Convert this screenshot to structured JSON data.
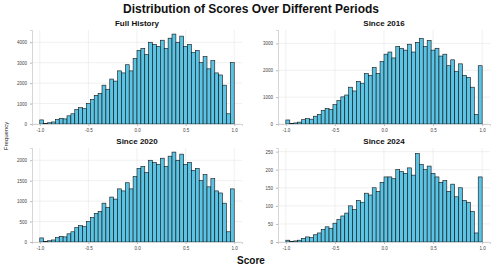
{
  "title": "Distribution of Scores Over Different Periods",
  "x_label": "Score",
  "y_label": "Frequency",
  "chart_data": [
    {
      "type": "histogram",
      "title": "Full History",
      "color": "#5bc4e4",
      "grid": true,
      "bins": [
        -1,
        -0.96,
        -0.92,
        -0.88,
        -0.84,
        -0.8,
        -0.76,
        -0.72,
        -0.68,
        -0.64,
        -0.6,
        -0.56,
        -0.52,
        -0.48,
        -0.44,
        -0.4,
        -0.36,
        -0.32,
        -0.28,
        -0.24,
        -0.2,
        -0.16,
        -0.12,
        -0.08,
        -0.04,
        0,
        0.04,
        0.08,
        0.12,
        0.16,
        0.2,
        0.24,
        0.28,
        0.32,
        0.36,
        0.4,
        0.44,
        0.48,
        0.52,
        0.56,
        0.6,
        0.64,
        0.68,
        0.72,
        0.76,
        0.8,
        0.84,
        0.88,
        0.92,
        0.96,
        1
      ],
      "values": [
        200,
        30,
        60,
        100,
        220,
        280,
        250,
        400,
        500,
        700,
        800,
        750,
        1000,
        1200,
        1400,
        1500,
        1900,
        1700,
        2200,
        2100,
        2600,
        2500,
        2900,
        2600,
        3200,
        3600,
        3700,
        3400,
        4000,
        3900,
        3800,
        4100,
        3700,
        4200,
        4400,
        4000,
        4300,
        3800,
        3900,
        3500,
        3600,
        3000,
        3300,
        2700,
        3100,
        2500,
        2400,
        1900,
        500,
        3000
      ],
      "xlim": [
        -1.08,
        1.08
      ],
      "ylim": [
        0,
        4600
      ],
      "xticks": [
        {
          "value": -1,
          "label": "-1.0"
        },
        -0.5,
        {
          "value": 0,
          "label": "0.0"
        },
        0.5,
        {
          "value": 1,
          "label": "1.0"
        }
      ],
      "yticks": [
        0,
        1000,
        2000,
        3000,
        4000
      ]
    },
    {
      "type": "histogram",
      "title": "Since 2016",
      "color": "#5bc4e4",
      "grid": true,
      "bins": [
        -1,
        -0.96,
        -0.92,
        -0.88,
        -0.84,
        -0.8,
        -0.76,
        -0.72,
        -0.68,
        -0.64,
        -0.6,
        -0.56,
        -0.52,
        -0.48,
        -0.44,
        -0.4,
        -0.36,
        -0.32,
        -0.28,
        -0.24,
        -0.2,
        -0.16,
        -0.12,
        -0.08,
        -0.04,
        0,
        0.04,
        0.08,
        0.12,
        0.16,
        0.2,
        0.24,
        0.28,
        0.32,
        0.36,
        0.4,
        0.44,
        0.48,
        0.52,
        0.56,
        0.6,
        0.64,
        0.68,
        0.72,
        0.76,
        0.8,
        0.84,
        0.88,
        0.92,
        0.96,
        1
      ],
      "values": [
        150,
        20,
        40,
        70,
        160,
        200,
        180,
        290,
        360,
        500,
        580,
        540,
        720,
        870,
        1010,
        1080,
        1370,
        1230,
        1590,
        1520,
        1880,
        1810,
        2100,
        1880,
        2320,
        2600,
        2680,
        2460,
        2890,
        2820,
        2750,
        2970,
        2680,
        3040,
        3180,
        2890,
        3110,
        2750,
        2820,
        2530,
        2600,
        2170,
        2390,
        1950,
        2240,
        1810,
        1740,
        1370,
        360,
        2170
      ],
      "xlim": [
        -1.08,
        1.08
      ],
      "ylim": [
        0,
        3500
      ],
      "xticks": [
        {
          "value": -1,
          "label": "-1.0"
        },
        -0.5,
        {
          "value": 0,
          "label": "0.0"
        },
        0.5,
        {
          "value": 1,
          "label": "1.0"
        }
      ],
      "yticks": [
        0,
        1000,
        2000,
        3000
      ]
    },
    {
      "type": "histogram",
      "title": "Since 2020",
      "color": "#5bc4e4",
      "grid": true,
      "bins": [
        -1,
        -0.96,
        -0.92,
        -0.88,
        -0.84,
        -0.8,
        -0.76,
        -0.72,
        -0.68,
        -0.64,
        -0.6,
        -0.56,
        -0.52,
        -0.48,
        -0.44,
        -0.4,
        -0.36,
        -0.32,
        -0.28,
        -0.24,
        -0.2,
        -0.16,
        -0.12,
        -0.08,
        -0.04,
        0,
        0.04,
        0.08,
        0.12,
        0.16,
        0.2,
        0.24,
        0.28,
        0.32,
        0.36,
        0.4,
        0.44,
        0.48,
        0.52,
        0.56,
        0.6,
        0.64,
        0.68,
        0.72,
        0.76,
        0.8,
        0.84,
        0.88,
        0.92,
        0.96,
        1
      ],
      "values": [
        100,
        15,
        30,
        50,
        110,
        140,
        125,
        200,
        250,
        350,
        400,
        375,
        500,
        600,
        700,
        750,
        950,
        850,
        1100,
        1050,
        1300,
        1250,
        1450,
        1300,
        1600,
        1800,
        1850,
        1700,
        2000,
        1950,
        1900,
        2050,
        1850,
        2100,
        2200,
        2000,
        2150,
        1900,
        1950,
        1750,
        1800,
        1500,
        1650,
        1350,
        1550,
        1250,
        1200,
        950,
        250,
        1300
      ],
      "xlim": [
        -1.08,
        1.08
      ],
      "ylim": [
        0,
        2300
      ],
      "xticks": [
        {
          "value": -1,
          "label": "-1.0"
        },
        -0.5,
        {
          "value": 0,
          "label": "0.0"
        },
        0.5,
        {
          "value": 1,
          "label": "1.0"
        }
      ],
      "yticks": [
        0,
        500,
        1000,
        1500,
        2000
      ]
    },
    {
      "type": "histogram",
      "title": "Since 2024",
      "color": "#5bc4e4",
      "grid": true,
      "bins": [
        -1,
        -0.96,
        -0.92,
        -0.88,
        -0.84,
        -0.8,
        -0.76,
        -0.72,
        -0.68,
        -0.64,
        -0.6,
        -0.56,
        -0.52,
        -0.48,
        -0.44,
        -0.4,
        -0.36,
        -0.32,
        -0.28,
        -0.24,
        -0.2,
        -0.16,
        -0.12,
        -0.08,
        -0.04,
        0,
        0.04,
        0.08,
        0.12,
        0.16,
        0.2,
        0.24,
        0.28,
        0.32,
        0.36,
        0.4,
        0.44,
        0.48,
        0.52,
        0.56,
        0.6,
        0.64,
        0.68,
        0.72,
        0.76,
        0.8,
        0.84,
        0.88,
        0.92,
        0.96,
        1
      ],
      "values": [
        5,
        2,
        3,
        5,
        10,
        14,
        12,
        20,
        25,
        35,
        42,
        38,
        52,
        62,
        72,
        80,
        100,
        90,
        115,
        110,
        135,
        130,
        150,
        140,
        165,
        180,
        180,
        175,
        200,
        195,
        190,
        205,
        185,
        245,
        215,
        200,
        210,
        190,
        180,
        165,
        170,
        140,
        160,
        125,
        150,
        115,
        110,
        85,
        25,
        180
      ],
      "xlim": [
        -1.08,
        1.08
      ],
      "ylim": [
        0,
        260
      ],
      "xticks": [
        {
          "value": -1,
          "label": "-1.0"
        },
        -0.5,
        {
          "value": 0,
          "label": "0.0"
        },
        0.5,
        {
          "value": 1,
          "label": "1.0"
        }
      ],
      "yticks": [
        0,
        50,
        100,
        150,
        200,
        250
      ]
    }
  ]
}
